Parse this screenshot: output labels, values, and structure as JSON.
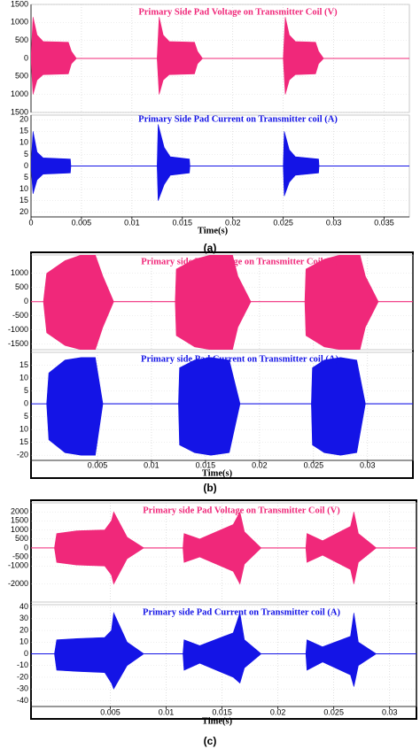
{
  "chart_data": [
    {
      "type": "band",
      "caption": "(a)",
      "xlabel": "Time(s)",
      "xlim": [
        0,
        0.0375
      ],
      "xticks": [
        0,
        0.005,
        0.01,
        0.015,
        0.02,
        0.025,
        0.03,
        0.035
      ],
      "subplots": [
        {
          "title": "Primary Side Pad Voltage on Transmitter Coil (V)",
          "color": "#f0287a",
          "ylim": [
            -1500,
            1500
          ],
          "yticks": [
            1500,
            1000,
            500,
            0,
            {
              "value": -500,
              "label": "500"
            },
            {
              "value": -1000,
              "label": "1000"
            },
            {
              "value": -1500,
              "label": "1500"
            }
          ],
          "x": [
            0,
            0.0002,
            0.0006,
            0.0012,
            0.0037,
            0.004,
            0.0045,
            0.0125,
            0.0127,
            0.0131,
            0.0137,
            0.0162,
            0.0165,
            0.017,
            0.025,
            0.0252,
            0.0256,
            0.0262,
            0.0282,
            0.0285,
            0.029,
            0.0375
          ],
          "upper": [
            0,
            1150,
            650,
            470,
            450,
            200,
            0,
            0,
            1150,
            650,
            470,
            450,
            200,
            0,
            0,
            1150,
            650,
            470,
            450,
            200,
            0,
            0
          ],
          "lower": [
            0,
            -1000,
            -600,
            -450,
            -430,
            -150,
            0,
            0,
            -1000,
            -600,
            -450,
            -430,
            -150,
            0,
            0,
            -1000,
            -600,
            -450,
            -430,
            -150,
            0,
            0
          ]
        },
        {
          "title": "Primary Side Pad Current on Transmitter coil (A)",
          "color": "#1414e6",
          "ylim": [
            -22,
            22
          ],
          "yticks": [
            20,
            15,
            10,
            5,
            0,
            {
              "value": -5,
              "label": "5"
            },
            {
              "value": -10,
              "label": "10"
            },
            {
              "value": -15,
              "label": "15"
            },
            {
              "value": -20,
              "label": "20"
            }
          ],
          "x": [
            0,
            0.0002,
            0.0006,
            0.0012,
            0.0039,
            0.00395,
            0.0125,
            0.0126,
            0.0132,
            0.0138,
            0.0157,
            0.01575,
            0.025,
            0.0251,
            0.0256,
            0.0262,
            0.0285,
            0.02855,
            0.0375
          ],
          "upper": [
            0,
            15,
            6,
            3.5,
            3,
            0,
            0,
            18,
            8,
            4,
            3,
            0,
            0,
            15,
            7,
            4,
            3,
            0,
            0
          ],
          "lower": [
            0,
            -12,
            -6,
            -3.5,
            -3,
            0,
            0,
            -15,
            -8,
            -4,
            -3,
            0,
            0,
            -13,
            -7,
            -4,
            -3,
            0,
            0
          ]
        }
      ]
    },
    {
      "type": "band",
      "caption": "(b)",
      "xlabel": "Time(s)",
      "xlim": [
        -0.00115,
        0.0342
      ],
      "xticks": [
        0.005,
        0.01,
        0.015,
        0.02,
        0.025,
        0.03
      ],
      "subplots": [
        {
          "title": "Primary side Pad Voltage on Transmitter Coil (V)",
          "color": "#f0287a",
          "ylim": [
            -1700,
            1650
          ],
          "yticks": [
            1000,
            500,
            0,
            -500,
            -1000,
            -1500
          ],
          "x": [
            0,
            0.0003,
            0.002,
            0.0035,
            0.0048,
            0.0055,
            0.0065,
            0.0122,
            0.0123,
            0.014,
            0.0155,
            0.0175,
            0.018,
            0.0192,
            0.0242,
            0.0243,
            0.026,
            0.0275,
            0.0293,
            0.0298,
            0.031,
            0.0342
          ],
          "upper": [
            0,
            1000,
            1450,
            1650,
            1650,
            900,
            0,
            0,
            1150,
            1500,
            1650,
            1650,
            900,
            0,
            0,
            1150,
            1500,
            1650,
            1650,
            900,
            0,
            0
          ],
          "lower": [
            0,
            -1100,
            -1550,
            -1700,
            -1700,
            -900,
            0,
            0,
            -1200,
            -1600,
            -1700,
            -1700,
            -900,
            0,
            0,
            -1200,
            -1600,
            -1700,
            -1700,
            -900,
            0,
            0
          ]
        },
        {
          "title": "Primary side Pad Current on Transmitter coil (A)",
          "color": "#1414e6",
          "ylim": [
            -22,
            20
          ],
          "yticks": [
            15,
            10,
            5,
            0,
            {
              "value": -5,
              "label": "5"
            },
            {
              "value": -10,
              "label": "10"
            },
            {
              "value": -15,
              "label": "15"
            },
            {
              "value": -20,
              "label": "-20"
            }
          ],
          "x": [
            0.0003,
            0.0005,
            0.002,
            0.0035,
            0.0048,
            0.0055,
            0.0125,
            0.0126,
            0.014,
            0.0155,
            0.0172,
            0.0182,
            0.0248,
            0.0249,
            0.026,
            0.0275,
            0.029,
            0.0298,
            0.0342
          ],
          "upper": [
            0,
            12,
            17,
            18,
            18,
            0,
            0,
            14,
            17,
            18,
            17,
            0,
            0,
            14,
            17,
            18,
            17,
            0,
            0
          ],
          "lower": [
            0,
            -14,
            -19,
            -20,
            -20,
            0,
            0,
            -16,
            -19,
            -20,
            -19,
            0,
            0,
            -16,
            -19,
            -20,
            -19,
            0,
            0
          ]
        }
      ]
    },
    {
      "type": "band",
      "caption": "(c)",
      "xlabel": "Time(s)",
      "xlim": [
        -0.0021,
        0.0324
      ],
      "xticks": [
        0.005,
        0.01,
        0.015,
        0.02,
        0.025,
        0.03
      ],
      "subplots": [
        {
          "title": "Primary side Pad Voltage on Transmitter Coil (V)",
          "color": "#f0287a",
          "ylim": [
            -3000,
            2500
          ],
          "yticks": [
            2000,
            1500,
            1000,
            500,
            0,
            -500,
            -1000,
            -2000
          ],
          "x": [
            0,
            0.0002,
            0.002,
            0.0045,
            0.0051,
            0.0053,
            0.0065,
            0.008,
            0.0115,
            0.0116,
            0.013,
            0.016,
            0.0166,
            0.017,
            0.0185,
            0.0225,
            0.0226,
            0.024,
            0.0265,
            0.0268,
            0.0272,
            0.0288,
            0.0324
          ],
          "upper": [
            0,
            800,
            950,
            1000,
            1500,
            2000,
            600,
            0,
            0,
            800,
            500,
            1300,
            2000,
            900,
            0,
            0,
            800,
            400,
            1200,
            2000,
            800,
            0,
            0
          ],
          "lower": [
            0,
            -800,
            -950,
            -1000,
            -1500,
            -2000,
            -600,
            0,
            0,
            -800,
            -500,
            -1300,
            -2000,
            -900,
            0,
            0,
            -800,
            -400,
            -1200,
            -2000,
            -800,
            0,
            0
          ]
        },
        {
          "title": "Primary side Pad Current on Transmitter coil (A)",
          "color": "#1414e6",
          "ylim": [
            -45,
            42
          ],
          "yticks": [
            40,
            30,
            20,
            10,
            0,
            -10,
            -20,
            -30,
            -40
          ],
          "x": [
            0,
            0.0002,
            0.002,
            0.0045,
            0.0051,
            0.0053,
            0.0065,
            0.008,
            0.0115,
            0.0116,
            0.013,
            0.016,
            0.0166,
            0.017,
            0.0185,
            0.0225,
            0.0226,
            0.024,
            0.0265,
            0.0268,
            0.0272,
            0.0288,
            0.0324
          ],
          "upper": [
            0,
            12,
            13,
            14,
            20,
            35,
            10,
            0,
            0,
            12,
            7,
            18,
            35,
            12,
            0,
            0,
            12,
            6,
            15,
            35,
            10,
            0,
            0
          ],
          "lower": [
            0,
            -14,
            -15,
            -16,
            -25,
            -30,
            -10,
            0,
            0,
            -14,
            -8,
            -20,
            -25,
            -12,
            0,
            0,
            -14,
            -7,
            -18,
            -28,
            -10,
            0,
            0
          ]
        }
      ]
    }
  ]
}
